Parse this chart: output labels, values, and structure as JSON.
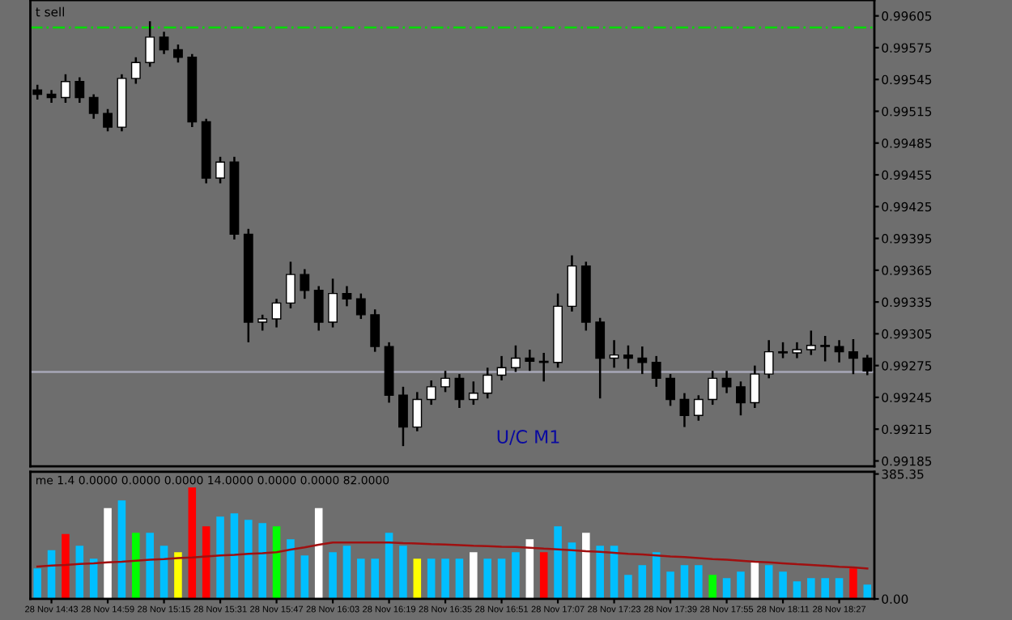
{
  "chart_data": [
    {
      "type": "candlestick",
      "ohlc": [
        [
          0.99535,
          0.9954,
          0.99526,
          0.99531
        ],
        [
          0.99531,
          0.99535,
          0.99523,
          0.99528
        ],
        [
          0.99528,
          0.9955,
          0.99523,
          0.99543
        ],
        [
          0.99543,
          0.99547,
          0.99523,
          0.99528
        ],
        [
          0.99528,
          0.99531,
          0.99508,
          0.99513
        ],
        [
          0.99513,
          0.99517,
          0.99496,
          0.995
        ],
        [
          0.995,
          0.9955,
          0.99496,
          0.99546
        ],
        [
          0.99546,
          0.99566,
          0.99541,
          0.99561
        ],
        [
          0.99561,
          0.996,
          0.99557,
          0.99585
        ],
        [
          0.99585,
          0.9959,
          0.99569,
          0.99573
        ],
        [
          0.99573,
          0.99578,
          0.99561,
          0.99566
        ],
        [
          0.99566,
          0.99569,
          0.995,
          0.99505
        ],
        [
          0.99505,
          0.99508,
          0.99447,
          0.99452
        ],
        [
          0.99452,
          0.99472,
          0.99447,
          0.99467
        ],
        [
          0.99467,
          0.99472,
          0.99394,
          0.99399
        ],
        [
          0.99399,
          0.99404,
          0.99297,
          0.99316
        ],
        [
          0.99316,
          0.99323,
          0.99308,
          0.99319
        ],
        [
          0.99319,
          0.99338,
          0.99311,
          0.99334
        ],
        [
          0.99334,
          0.99373,
          0.99329,
          0.99361
        ],
        [
          0.99361,
          0.99366,
          0.99338,
          0.99346
        ],
        [
          0.99346,
          0.9935,
          0.99308,
          0.99316
        ],
        [
          0.99316,
          0.99357,
          0.99311,
          0.99343
        ],
        [
          0.99343,
          0.9935,
          0.99331,
          0.99338
        ],
        [
          0.99338,
          0.99343,
          0.99319,
          0.99323
        ],
        [
          0.99323,
          0.99328,
          0.99288,
          0.99293
        ],
        [
          0.99293,
          0.99297,
          0.9924,
          0.99247
        ],
        [
          0.99247,
          0.99255,
          0.99199,
          0.99217
        ],
        [
          0.99217,
          0.9925,
          0.99213,
          0.99243
        ],
        [
          0.99243,
          0.99261,
          0.99238,
          0.99255
        ],
        [
          0.99255,
          0.9927,
          0.9925,
          0.99263
        ],
        [
          0.99263,
          0.99267,
          0.99235,
          0.99243
        ],
        [
          0.99243,
          0.9926,
          0.99238,
          0.99249
        ],
        [
          0.99249,
          0.99273,
          0.99244,
          0.99266
        ],
        [
          0.99266,
          0.99284,
          0.99261,
          0.99273
        ],
        [
          0.99273,
          0.99294,
          0.99269,
          0.99282
        ],
        [
          0.99282,
          0.9929,
          0.9927,
          0.99279
        ],
        [
          0.99279,
          0.99287,
          0.9926,
          0.99278
        ],
        [
          0.99278,
          0.99343,
          0.99273,
          0.99331
        ],
        [
          0.99331,
          0.99379,
          0.99326,
          0.99369
        ],
        [
          0.99369,
          0.99373,
          0.99308,
          0.99316
        ],
        [
          0.99316,
          0.9932,
          0.99244,
          0.99282
        ],
        [
          0.99282,
          0.99299,
          0.99273,
          0.99285
        ],
        [
          0.99285,
          0.99294,
          0.99272,
          0.99282
        ],
        [
          0.99282,
          0.99293,
          0.99267,
          0.99278
        ],
        [
          0.99278,
          0.99284,
          0.99255,
          0.99263
        ],
        [
          0.99263,
          0.99267,
          0.99237,
          0.99243
        ],
        [
          0.99243,
          0.99249,
          0.99217,
          0.99228
        ],
        [
          0.99228,
          0.99247,
          0.99223,
          0.99243
        ],
        [
          0.99243,
          0.9927,
          0.99238,
          0.99263
        ],
        [
          0.99263,
          0.9927,
          0.99249,
          0.99255
        ],
        [
          0.99255,
          0.9926,
          0.99228,
          0.9924
        ],
        [
          0.9924,
          0.99275,
          0.99235,
          0.99267
        ],
        [
          0.99267,
          0.99299,
          0.99263,
          0.99288
        ],
        [
          0.99288,
          0.99297,
          0.99282,
          0.99287
        ],
        [
          0.99287,
          0.99297,
          0.99282,
          0.9929
        ],
        [
          0.9929,
          0.99308,
          0.99285,
          0.99294
        ],
        [
          0.99294,
          0.99303,
          0.99279,
          0.99293
        ],
        [
          0.99293,
          0.99299,
          0.99278,
          0.99288
        ],
        [
          0.99288,
          0.993,
          0.99267,
          0.99282
        ],
        [
          0.99282,
          0.99285,
          0.99266,
          0.9927
        ]
      ],
      "colors": [
        "#000000",
        "#000000",
        "#ffffff",
        "#000000",
        "#000000",
        "#000000",
        "#ffffff",
        "#ffffff",
        "#ffffff",
        "#000000",
        "#000000",
        "#000000",
        "#000000",
        "#ffffff",
        "#000000",
        "#000000",
        "#ffffff",
        "#ffffff",
        "#ffffff",
        "#000000",
        "#000000",
        "#ffffff",
        "#000000",
        "#000000",
        "#000000",
        "#000000",
        "#000000",
        "#ffffff",
        "#ffffff",
        "#ffffff",
        "#000000",
        "#ffffff",
        "#ffffff",
        "#ffffff",
        "#ffffff",
        "#000000",
        "#000000",
        "#ffffff",
        "#ffffff",
        "#000000",
        "#000000",
        "#ffffff",
        "#000000",
        "#000000",
        "#000000",
        "#000000",
        "#000000",
        "#ffffff",
        "#ffffff",
        "#000000",
        "#000000",
        "#ffffff",
        "#ffffff",
        "#000000",
        "#ffffff",
        "#ffffff",
        "#000000",
        "#000000",
        "#000000",
        "#000000"
      ],
      "ylim": [
        0.9918,
        0.9962
      ],
      "yticks": [
        0.99185,
        0.99215,
        0.99245,
        0.99275,
        0.99305,
        0.99335,
        0.99365,
        0.99395,
        0.99425,
        0.99455,
        0.99485,
        0.99515,
        0.99545,
        0.99575,
        0.99605
      ],
      "ref_lines": [
        {
          "axis": "y",
          "value": 0.99594,
          "color": "#00dd00",
          "line_style": "dashed"
        },
        {
          "axis": "y",
          "value": 0.99269,
          "color": "#a8a8b8",
          "line_style": "solid"
        }
      ],
      "annotations": [
        "t sell",
        "U/C M1"
      ],
      "tick_labels": "y",
      "grid": false
    },
    {
      "type": "bar",
      "categories": [
        null,
        "28 Nov 14:43",
        null,
        null,
        null,
        "28 Nov 14:59",
        null,
        null,
        null,
        "28 Nov 15:15",
        null,
        null,
        null,
        "28 Nov 15:31",
        null,
        null,
        null,
        "28 Nov 15:47",
        null,
        null,
        null,
        "28 Nov 16:03",
        null,
        null,
        null,
        "28 Nov 16:19",
        null,
        null,
        null,
        "28 Nov 16:35",
        null,
        null,
        null,
        "28 Nov 16:51",
        null,
        null,
        null,
        "28 Nov 17:07",
        null,
        null,
        null,
        "28 Nov 17:23",
        null,
        null,
        null,
        "28 Nov 17:39",
        null,
        null,
        null,
        "28 Nov 17:55",
        null,
        null,
        null,
        "28 Nov 18:11",
        null,
        null,
        null,
        "28 Nov 18:27",
        null,
        null
      ],
      "series": [
        {
          "type": "bar",
          "values": [
            94,
            150,
            200,
            164,
            124,
            280,
            304,
            204,
            204,
            164,
            144,
            344,
            224,
            254,
            264,
            244,
            234,
            224,
            184,
            134,
            280,
            144,
            164,
            124,
            124,
            204,
            164,
            124,
            124,
            124,
            124,
            144,
            124,
            124,
            144,
            184,
            144,
            224,
            174,
            204,
            164,
            164,
            74,
            104,
            144,
            84,
            104,
            104,
            74,
            64,
            84,
            114,
            104,
            84,
            54,
            64,
            64,
            64,
            94,
            44
          ],
          "colors": [
            "#00bfff",
            "#00bfff",
            "#ff0000",
            "#00bfff",
            "#00bfff",
            "#ffffff",
            "#00bfff",
            "#00ff00",
            "#00bfff",
            "#00bfff",
            "#ffff00",
            "#ff0000",
            "#ff0000",
            "#00bfff",
            "#00bfff",
            "#00bfff",
            "#00bfff",
            "#00ff00",
            "#00bfff",
            "#00bfff",
            "#ffffff",
            "#00bfff",
            "#00bfff",
            "#00bfff",
            "#00bfff",
            "#00bfff",
            "#00bfff",
            "#ffff00",
            "#00bfff",
            "#00bfff",
            "#00bfff",
            "#ffffff",
            "#00bfff",
            "#00bfff",
            "#00bfff",
            "#ffffff",
            "#ff0000",
            "#00bfff",
            "#00bfff",
            "#ffffff",
            "#00bfff",
            "#00bfff",
            "#00bfff",
            "#00bfff",
            "#00bfff",
            "#00bfff",
            "#00bfff",
            "#00bfff",
            "#00ff00",
            "#00bfff",
            "#00bfff",
            "#ffffff",
            "#00bfff",
            "#00bfff",
            "#00bfff",
            "#00bfff",
            "#00bfff",
            "#00bfff",
            "#ff0000",
            "#00bfff"
          ]
        },
        {
          "type": "line",
          "color": "#a01010",
          "values": [
            100,
            103,
            105,
            108,
            110,
            113,
            115,
            118,
            121,
            123,
            126,
            128,
            131,
            134,
            136,
            139,
            141,
            144,
            152,
            159,
            167,
            174,
            174,
            174,
            174,
            174,
            172,
            171,
            169,
            168,
            166,
            164,
            163,
            161,
            160,
            158,
            155,
            153,
            150,
            147,
            145,
            142,
            139,
            137,
            134,
            131,
            129,
            126,
            123,
            121,
            118,
            115,
            113,
            110,
            107,
            105,
            102,
            99,
            97,
            94
          ]
        }
      ],
      "ylim": [
        0,
        392
      ],
      "yticks": [
        {
          "value": 0,
          "label": "0.00"
        },
        {
          "value": 385.35,
          "label": "385.35"
        }
      ],
      "annotations": [
        "me 1.4 0.0000 0.0000 0.0000 14.0000 0.0000 0.0000 82.0000"
      ],
      "grid": false
    }
  ]
}
